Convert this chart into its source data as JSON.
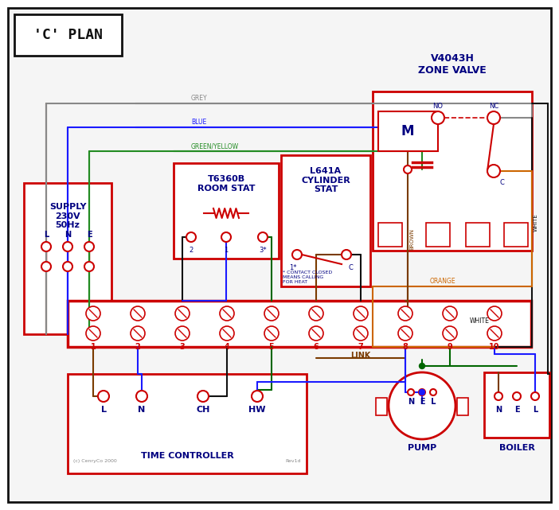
{
  "bg": "#f0f0f0",
  "white": "#ffffff",
  "black": "#111111",
  "red": "#cc0000",
  "blue": "#1a1aff",
  "green": "#006600",
  "grey": "#888888",
  "brown": "#7a3b00",
  "orange": "#cc6600",
  "green_yellow": "#228B22",
  "navy": "#000080",
  "title": "'C' PLAN",
  "supply_label": "SUPPLY\n230V\n50Hz",
  "zone_valve_label": "V4043H\nZONE VALVE",
  "room_stat_label": "T6360B\nROOM STAT",
  "cyl_stat_label": "L641A\nCYLINDER\nSTAT",
  "time_ctrl_label": "TIME CONTROLLER",
  "pump_label": "PUMP",
  "boiler_label": "BOILER",
  "link_label": "LINK",
  "note_label": "* CONTACT CLOSED\nMEANS CALLING\nFOR HEAT",
  "copyright": "(c) CenryCo 2000",
  "rev": "Rev1d"
}
